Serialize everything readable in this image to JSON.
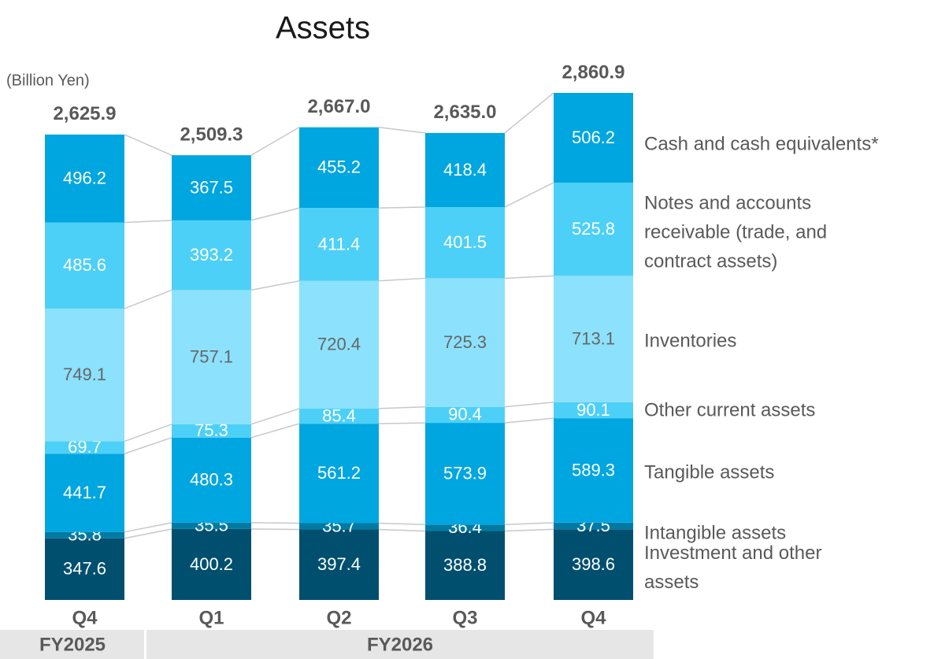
{
  "chart_data": {
    "type": "stacked-bar",
    "title": "Assets",
    "unit_label": "(Billion Yen)",
    "categories": [
      "Q4",
      "Q1",
      "Q2",
      "Q3",
      "Q4"
    ],
    "groups": [
      "FY2025",
      "FY2026"
    ],
    "series": [
      {
        "name": "Investment and other assets",
        "color": "#004f6e",
        "label_color": "#ffffff",
        "values": [
          347.6,
          400.2,
          397.4,
          388.8,
          398.6
        ]
      },
      {
        "name": "Intangible assets",
        "color": "#007aa3",
        "label_color": "#ffffff",
        "values": [
          35.8,
          35.5,
          35.7,
          36.4,
          37.5
        ]
      },
      {
        "name": "Tangible assets",
        "color": "#00a6e0",
        "label_color": "#ffffff",
        "values": [
          441.7,
          480.3,
          561.2,
          573.9,
          589.3
        ]
      },
      {
        "name": "Other current assets",
        "color": "#4dd0f7",
        "label_color": "#ffffff",
        "values": [
          69.7,
          75.3,
          85.4,
          90.4,
          90.1
        ]
      },
      {
        "name": "Inventories",
        "color": "#8ce1fc",
        "label_color": "#666666",
        "values": [
          749.1,
          757.1,
          720.4,
          725.3,
          713.1
        ]
      },
      {
        "name": "Notes and accounts receivable (trade, and contract assets)",
        "color": "#4dd0f7",
        "label_color": "#ffffff",
        "values": [
          485.6,
          393.2,
          411.4,
          401.5,
          525.8
        ]
      },
      {
        "name": "Cash and cash equivalents*",
        "color": "#00a6e0",
        "label_color": "#ffffff",
        "values": [
          496.2,
          367.5,
          455.2,
          418.4,
          506.2
        ]
      }
    ],
    "totals": [
      2625.9,
      2509.3,
      2667.0,
      2635.0,
      2860.9
    ],
    "total_labels": [
      "2,625.9",
      "2,509.3",
      "2,667.0",
      "2,635.0",
      "2,860.9"
    ]
  }
}
